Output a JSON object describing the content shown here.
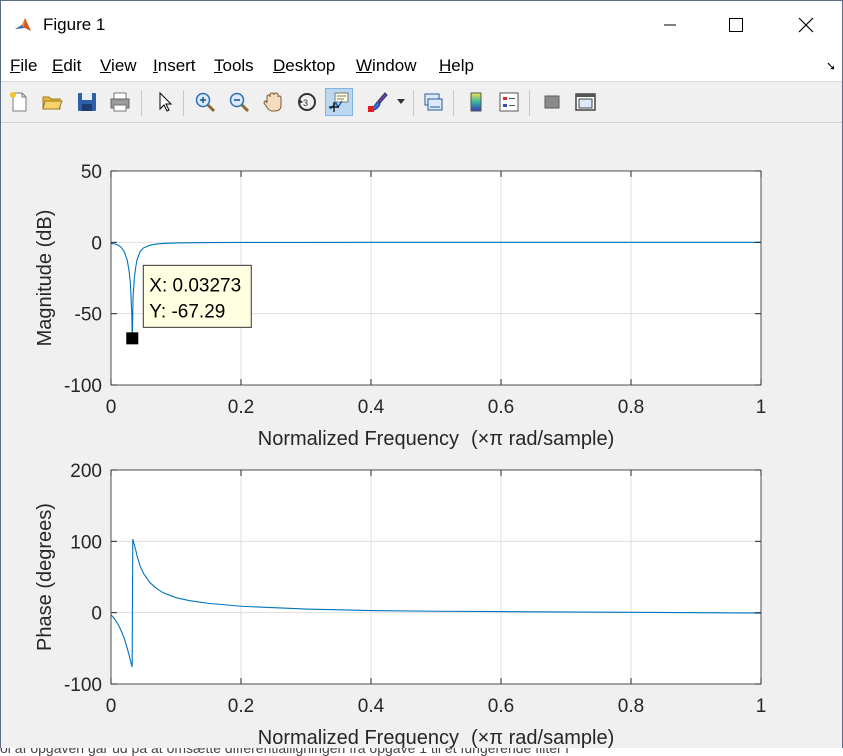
{
  "window": {
    "title": "Figure 1"
  },
  "menu": {
    "items": [
      {
        "first": "F",
        "rest": "ile"
      },
      {
        "first": "E",
        "rest": "dit"
      },
      {
        "first": "V",
        "rest": "iew"
      },
      {
        "first": "I",
        "rest": "nsert"
      },
      {
        "first": "T",
        "rest": "ools"
      },
      {
        "first": "D",
        "rest": "esktop"
      },
      {
        "first": "W",
        "rest": "indow"
      },
      {
        "first": "H",
        "rest": "elp"
      }
    ]
  },
  "toolbar": {
    "icons": [
      "new-figure-icon",
      "open-file-icon",
      "save-icon",
      "print-icon",
      "pointer-icon",
      "zoom-in-icon",
      "zoom-out-icon",
      "pan-hand-icon",
      "rotate-3d-icon",
      "data-cursor-icon",
      "brush-icon",
      "link-plot-icon",
      "colorbar-icon",
      "legend-icon",
      "hide-plot-tools-icon",
      "show-plot-tools-icon"
    ],
    "active": "data-cursor-icon"
  },
  "colors": {
    "line": "#0072bd",
    "grid": "#dfdfdf",
    "axes": "#262626",
    "tooltip_bg": "#ffffe1"
  },
  "chart_data": [
    {
      "type": "line",
      "xlabel_main": "Normalized Frequency",
      "xlabel_unit": "(×π rad/sample)",
      "ylabel": "Magnitude (dB)",
      "xlim": [
        0,
        1
      ],
      "ylim": [
        -100,
        50
      ],
      "xticks": [
        0,
        0.2,
        0.4,
        0.6,
        0.8,
        1
      ],
      "xtick_labels": [
        "0",
        "0.2",
        "0.4",
        "0.6",
        "0.8",
        "1"
      ],
      "yticks": [
        50,
        0,
        -50,
        -100
      ],
      "ytick_labels": [
        "50",
        "0",
        "-50",
        "-100"
      ],
      "grid": true,
      "notch": {
        "frequency": 0.03273,
        "depth_db": -67.29
      },
      "series": [
        {
          "x": [
            0,
            0.005,
            0.01,
            0.015,
            0.02,
            0.025,
            0.028,
            0.03,
            0.032,
            0.03273,
            0.034,
            0.036,
            0.038,
            0.04,
            0.045,
            0.05,
            0.06,
            0.07,
            0.08,
            0.1,
            0.15,
            0.2,
            0.3,
            0.4,
            0.6,
            0.8,
            1
          ],
          "y": [
            -0.8,
            -1.0,
            -1.8,
            -3.2,
            -6.1,
            -12.5,
            -20.5,
            -29.8,
            -50.5,
            -67.29,
            -37.8,
            -24.8,
            -17.5,
            -12.3,
            -6.4,
            -3.9,
            -2.0,
            -1.2,
            -0.8,
            -0.4,
            -0.15,
            -0.08,
            -0.04,
            -0.02,
            -0.01,
            0,
            0
          ]
        }
      ],
      "datatip": {
        "label_x": "X: 0.03273",
        "label_y": "Y: -67.29",
        "x": 0.03273,
        "y": -67.29
      }
    },
    {
      "type": "line",
      "xlabel_main": "Normalized Frequency",
      "xlabel_unit": "(×π rad/sample)",
      "ylabel": "Phase (degrees)",
      "xlim": [
        0,
        1
      ],
      "ylim": [
        -100,
        200
      ],
      "xticks": [
        0,
        0.2,
        0.4,
        0.6,
        0.8,
        1
      ],
      "xtick_labels": [
        "0",
        "0.2",
        "0.4",
        "0.6",
        "0.8",
        "1"
      ],
      "yticks": [
        200,
        100,
        0,
        -100
      ],
      "ytick_labels": [
        "200",
        "100",
        "0",
        "-100"
      ],
      "grid": true,
      "series": [
        {
          "x": [
            0,
            0.005,
            0.01,
            0.015,
            0.02,
            0.025,
            0.028,
            0.03,
            0.0325,
            0.0335,
            0.035,
            0.038,
            0.04,
            0.045,
            0.05,
            0.06,
            0.07,
            0.08,
            0.1,
            0.12,
            0.15,
            0.2,
            0.3,
            0.4,
            0.5,
            0.6,
            0.8,
            1
          ],
          "y": [
            -3,
            -8,
            -15,
            -24,
            -35,
            -50,
            -60,
            -68,
            -76,
            103,
            98,
            88,
            80,
            65,
            55,
            42,
            34,
            28,
            21,
            17,
            13,
            9,
            5,
            3,
            2,
            1.5,
            0.5,
            -0.5
          ]
        }
      ]
    }
  ],
  "background_text": "ol af opgaven går ud på at omsætte differentialligningen fra opgave 1 til et fungerende filter i"
}
